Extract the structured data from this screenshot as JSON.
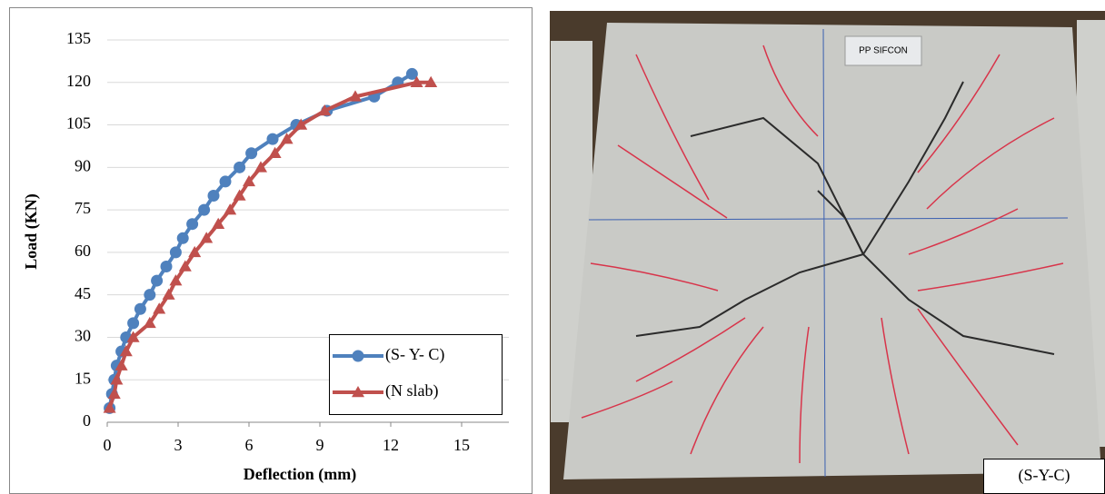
{
  "chart_data": {
    "type": "line",
    "x_label": "Deflection (mm)",
    "y_label": "Load (KN)",
    "xlim": [
      0,
      17
    ],
    "xticks": [
      0,
      3,
      6,
      9,
      12,
      15
    ],
    "ylim": [
      0,
      135
    ],
    "yticks": [
      0,
      15,
      30,
      45,
      60,
      75,
      90,
      105,
      120,
      135
    ],
    "grid": true,
    "legend": "lower right",
    "series": [
      {
        "name": "(S- Y- C)",
        "color": "#4f81bd",
        "marker": "circle",
        "x": [
          0.1,
          0.2,
          0.3,
          0.4,
          0.6,
          0.8,
          1.1,
          1.4,
          1.8,
          2.1,
          2.5,
          2.9,
          3.2,
          3.6,
          4.1,
          4.5,
          5.0,
          5.6,
          6.1,
          7.0,
          8.0,
          9.3,
          11.3,
          12.3,
          12.9
        ],
        "values": [
          5,
          10,
          15,
          20,
          25,
          30,
          35,
          40,
          45,
          50,
          55,
          60,
          65,
          70,
          75,
          80,
          85,
          90,
          95,
          100,
          105,
          110,
          115,
          120,
          123
        ]
      },
      {
        "name": "(N slab)",
        "color": "#c0504d",
        "marker": "triangle",
        "x": [
          0.1,
          0.3,
          0.4,
          0.6,
          0.8,
          1.1,
          1.8,
          2.2,
          2.6,
          2.9,
          3.3,
          3.7,
          4.2,
          4.7,
          5.2,
          5.6,
          6.0,
          6.5,
          7.1,
          7.6,
          8.2,
          9.2,
          10.5,
          13.1,
          13.7
        ],
        "values": [
          5,
          10,
          15,
          20,
          25,
          30,
          35,
          40,
          45,
          50,
          55,
          60,
          65,
          70,
          75,
          80,
          85,
          90,
          95,
          100,
          105,
          110,
          115,
          120,
          120
        ]
      }
    ]
  },
  "photo": {
    "tag": "PP SIFCON",
    "label": "(S-Y-C)"
  }
}
